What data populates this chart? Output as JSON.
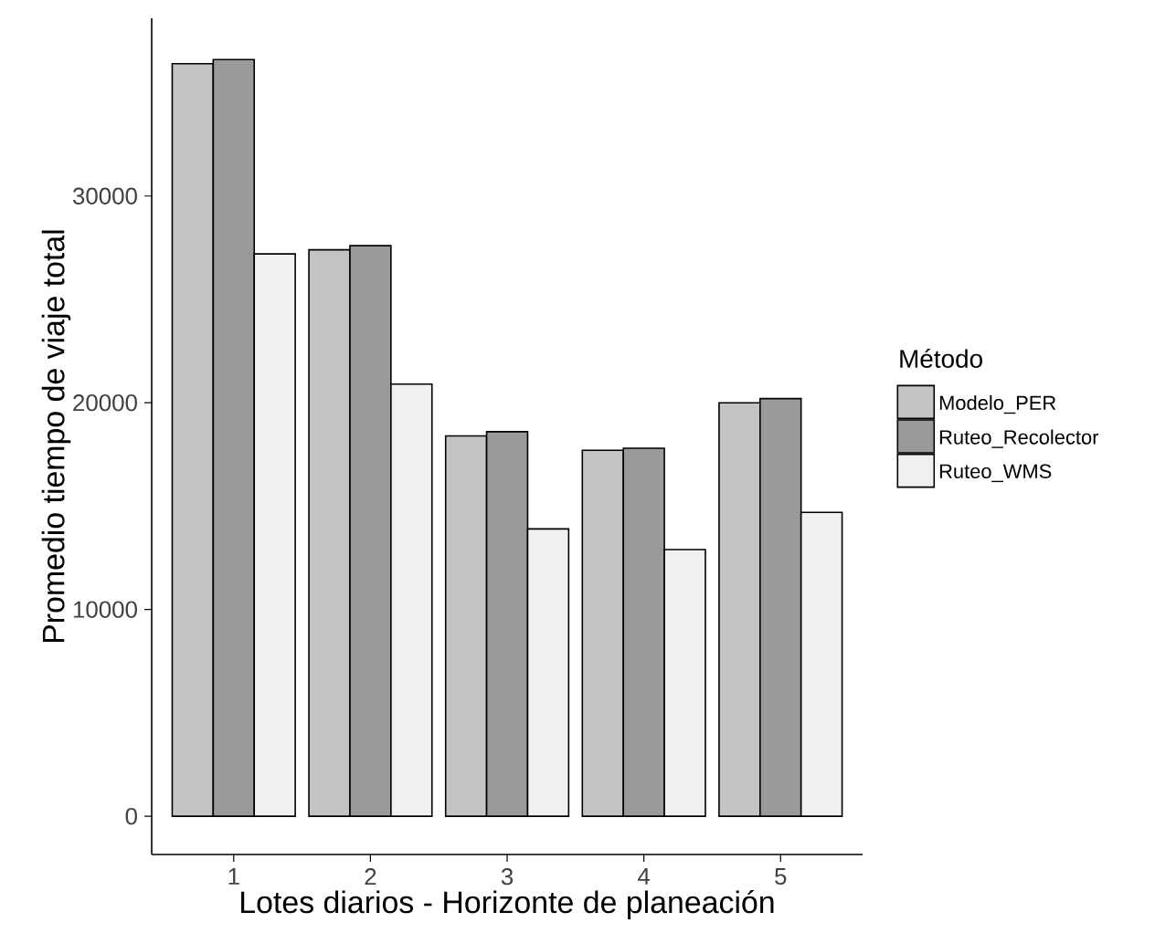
{
  "chart_data": {
    "type": "bar",
    "xlabel": "Lotes diarios - Horizonte de planeación",
    "ylabel": "Promedio tiempo de viaje total",
    "legend_title": "Método",
    "categories": [
      "1",
      "2",
      "3",
      "4",
      "5"
    ],
    "series": [
      {
        "name": "Modelo_PER",
        "color": "#c4c4c4",
        "values": [
          36400,
          27400,
          18400,
          17700,
          20000
        ]
      },
      {
        "name": "Ruteo_Recolector",
        "color": "#9a9a9a",
        "values": [
          36600,
          27600,
          18600,
          17800,
          20200
        ]
      },
      {
        "name": "Ruteo_WMS",
        "color": "#f0f0f0",
        "values": [
          27200,
          20900,
          13900,
          12900,
          14700
        ]
      }
    ],
    "ylim": [
      -1850,
      38600
    ],
    "yticks": [
      0,
      10000,
      20000,
      30000
    ],
    "grid": false,
    "legend": "right"
  }
}
